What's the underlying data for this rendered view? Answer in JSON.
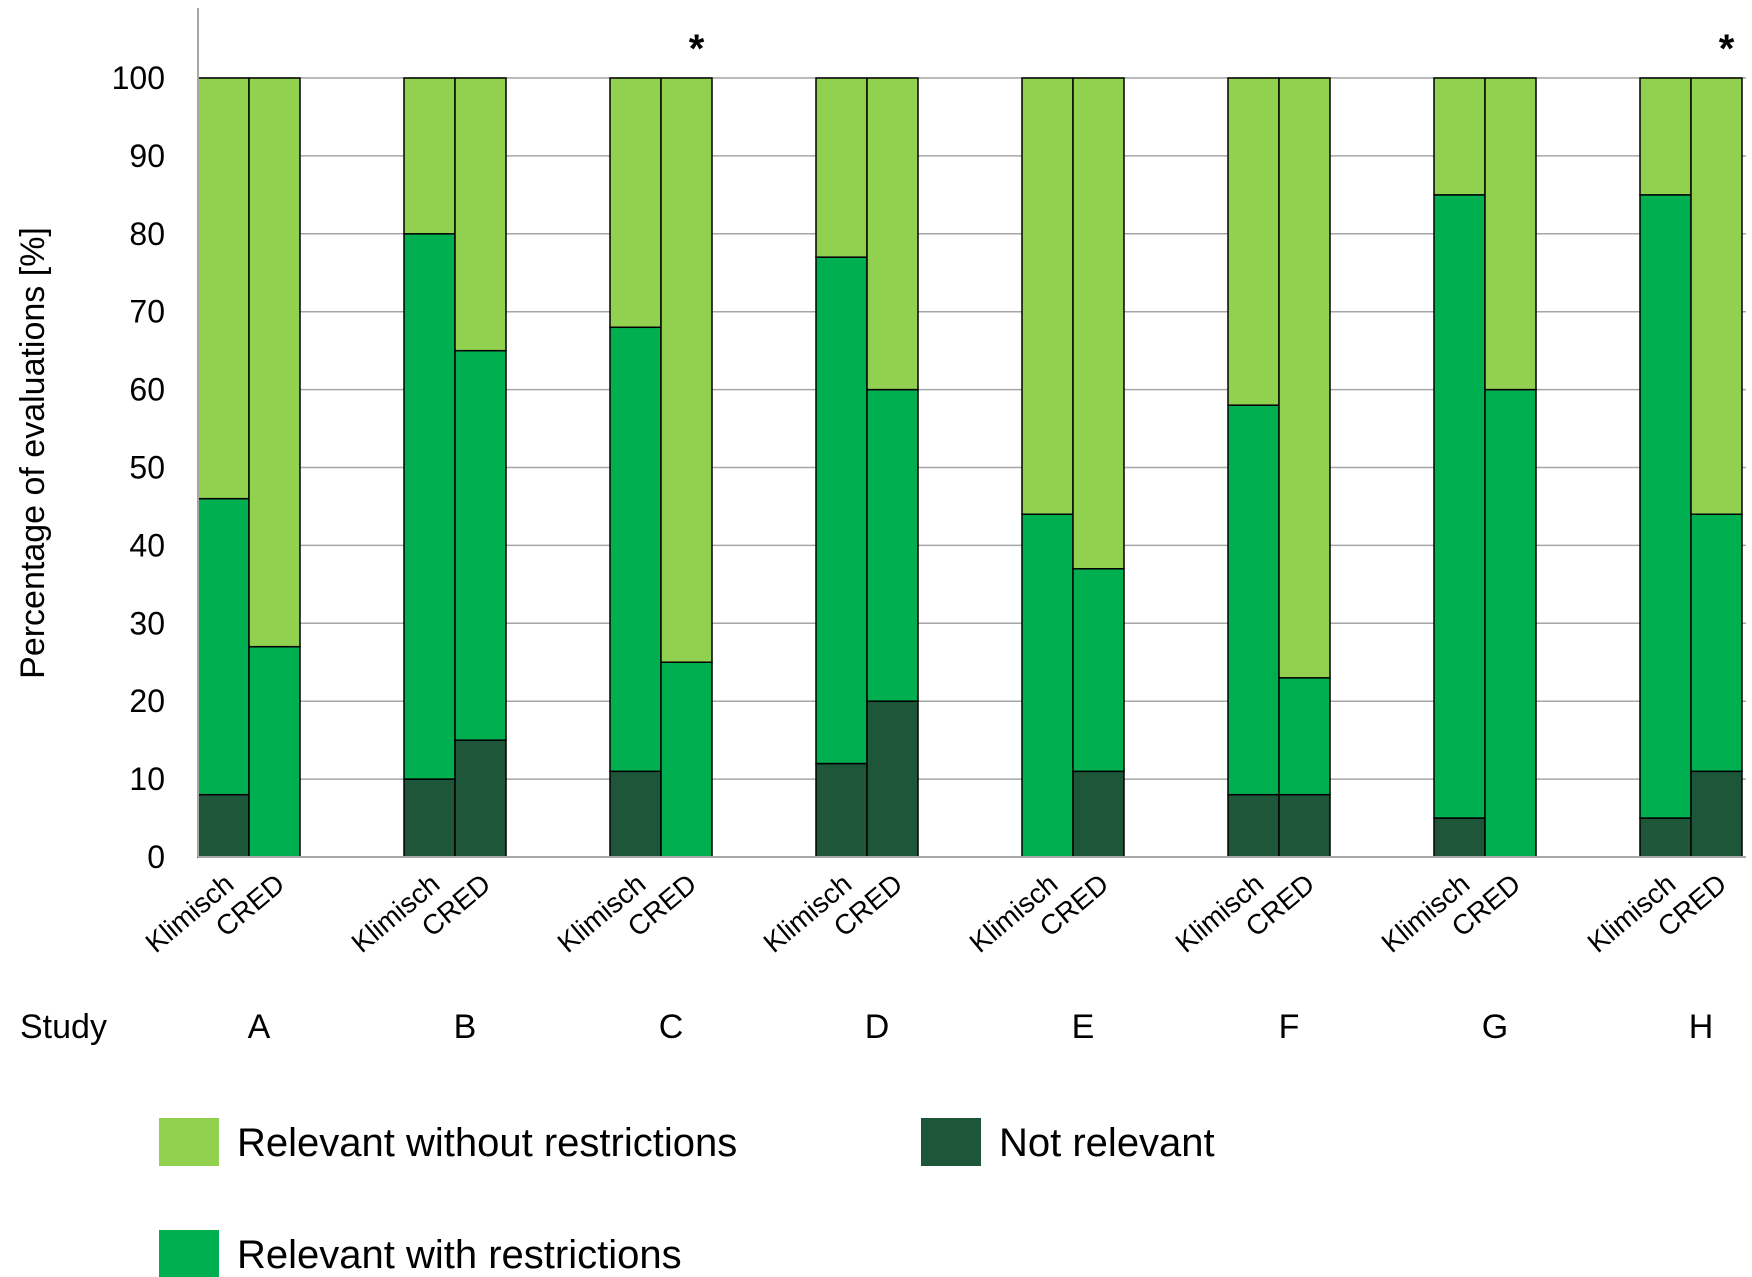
{
  "chart_data": {
    "type": "bar",
    "stacked": true,
    "ylabel": "Percentage of evaluations [%]",
    "ylim": [
      0,
      100
    ],
    "yticks": [
      "0",
      "10",
      "20",
      "30",
      "40",
      "50",
      "60",
      "70",
      "80",
      "90",
      "100"
    ],
    "grid": true,
    "legend_position": "bottom",
    "study_label": "Study",
    "groups": [
      {
        "study": "A",
        "significant": false,
        "bars": [
          {
            "method": "Klimisch",
            "not_relevant": 8,
            "with_restrictions": 38,
            "without_restrictions": 54
          },
          {
            "method": "CRED",
            "not_relevant": 0,
            "with_restrictions": 27,
            "without_restrictions": 73
          }
        ]
      },
      {
        "study": "B",
        "significant": false,
        "bars": [
          {
            "method": "Klimisch",
            "not_relevant": 10,
            "with_restrictions": 70,
            "without_restrictions": 20
          },
          {
            "method": "CRED",
            "not_relevant": 15,
            "with_restrictions": 50,
            "without_restrictions": 35
          }
        ]
      },
      {
        "study": "C",
        "significant": true,
        "bars": [
          {
            "method": "Klimisch",
            "not_relevant": 11,
            "with_restrictions": 57,
            "without_restrictions": 32
          },
          {
            "method": "CRED",
            "not_relevant": 0,
            "with_restrictions": 25,
            "without_restrictions": 75
          }
        ]
      },
      {
        "study": "D",
        "significant": false,
        "bars": [
          {
            "method": "Klimisch",
            "not_relevant": 12,
            "with_restrictions": 65,
            "without_restrictions": 23
          },
          {
            "method": "CRED",
            "not_relevant": 20,
            "with_restrictions": 40,
            "without_restrictions": 40
          }
        ]
      },
      {
        "study": "E",
        "significant": false,
        "bars": [
          {
            "method": "Klimisch",
            "not_relevant": 0,
            "with_restrictions": 44,
            "without_restrictions": 56
          },
          {
            "method": "CRED",
            "not_relevant": 11,
            "with_restrictions": 26,
            "without_restrictions": 63
          }
        ]
      },
      {
        "study": "F",
        "significant": false,
        "bars": [
          {
            "method": "Klimisch",
            "not_relevant": 8,
            "with_restrictions": 50,
            "without_restrictions": 42
          },
          {
            "method": "CRED",
            "not_relevant": 8,
            "with_restrictions": 15,
            "without_restrictions": 77
          }
        ]
      },
      {
        "study": "G",
        "significant": false,
        "bars": [
          {
            "method": "Klimisch",
            "not_relevant": 5,
            "with_restrictions": 80,
            "without_restrictions": 15
          },
          {
            "method": "CRED",
            "not_relevant": 0,
            "with_restrictions": 60,
            "without_restrictions": 40
          }
        ]
      },
      {
        "study": "H",
        "significant": true,
        "bars": [
          {
            "method": "Klimisch",
            "not_relevant": 5,
            "with_restrictions": 80,
            "without_restrictions": 15
          },
          {
            "method": "CRED",
            "not_relevant": 11,
            "with_restrictions": 33,
            "without_restrictions": 56
          }
        ]
      }
    ],
    "series": [
      {
        "key": "without_restrictions",
        "name": "Relevant without restrictions",
        "color": "#92d050"
      },
      {
        "key": "with_restrictions",
        "name": "Relevant with restrictions",
        "color": "#00b050"
      },
      {
        "key": "not_relevant",
        "name": "Not relevant",
        "color": "#1e5639"
      }
    ],
    "significance_marker": "*"
  }
}
